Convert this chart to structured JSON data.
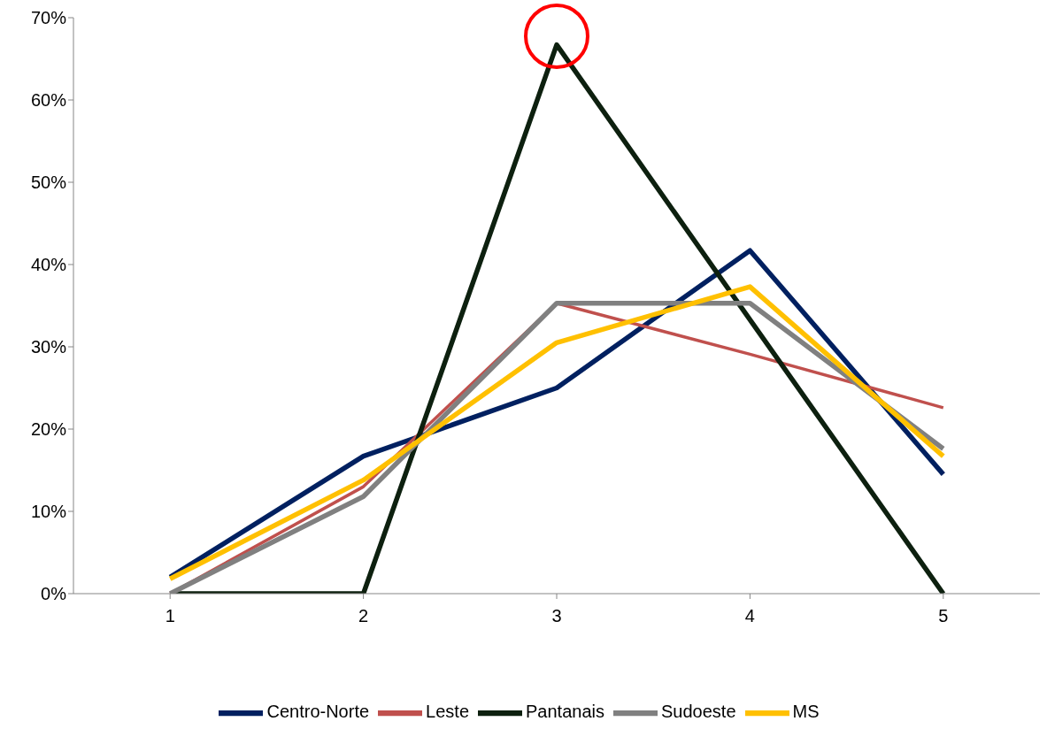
{
  "chart_data": {
    "type": "line",
    "categories": [
      "1",
      "2",
      "3",
      "4",
      "5"
    ],
    "series": [
      {
        "name": "Centro-Norte",
        "color": "#002060",
        "values": [
          2.0,
          16.7,
          25.0,
          41.7,
          14.5
        ]
      },
      {
        "name": "Leste",
        "color": "#c0504d",
        "values": [
          0,
          13.0,
          35.3,
          29.1,
          22.6
        ]
      },
      {
        "name": "Pantanais",
        "color": "#0d200f",
        "values": [
          0,
          0,
          66.7,
          33.3,
          0
        ]
      },
      {
        "name": "Sudoeste",
        "color": "#808080",
        "values": [
          0,
          11.8,
          35.3,
          35.3,
          17.6
        ]
      },
      {
        "name": "MS",
        "color": "#ffc000",
        "values": [
          1.8,
          13.8,
          30.5,
          37.3,
          16.7
        ]
      }
    ],
    "ylim": [
      0,
      70
    ],
    "yticks": [
      {
        "value": 0,
        "label": "0%"
      },
      {
        "value": 10,
        "label": "10%"
      },
      {
        "value": 20,
        "label": "20%"
      },
      {
        "value": 30,
        "label": "30%"
      },
      {
        "value": 40,
        "label": "40%"
      },
      {
        "value": 50,
        "label": "50%"
      },
      {
        "value": 60,
        "label": "60%"
      },
      {
        "value": 70,
        "label": "70%"
      }
    ],
    "grid": false,
    "legend": "bottom",
    "marker": "none",
    "line_style": "solid"
  }
}
